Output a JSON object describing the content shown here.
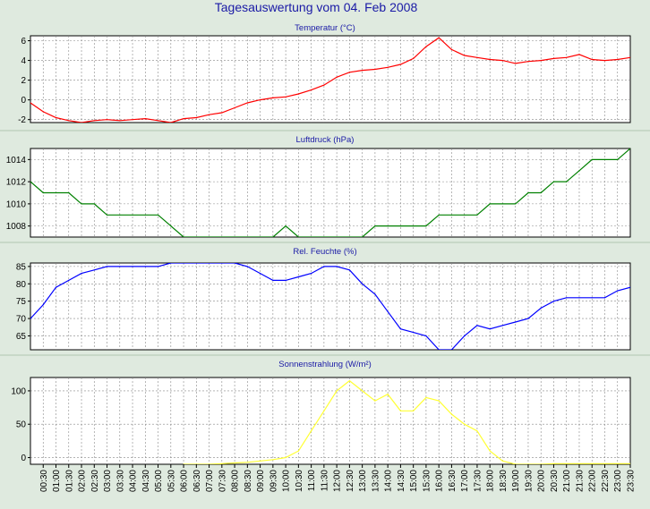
{
  "page_title": "Tagesauswertung vom 04. Feb 2008",
  "x_tick_labels": [
    "00:30",
    "01:00",
    "01:30",
    "02:00",
    "02:30",
    "03:00",
    "03:30",
    "04:00",
    "04:30",
    "05:00",
    "05:30",
    "06:00",
    "06:30",
    "07:00",
    "07:30",
    "08:00",
    "08:30",
    "09:00",
    "09:30",
    "10:00",
    "10:30",
    "11:00",
    "11:30",
    "12:00",
    "12:30",
    "13:00",
    "13:30",
    "14:00",
    "14:30",
    "15:00",
    "15:30",
    "16:00",
    "16:30",
    "17:00",
    "17:30",
    "18:00",
    "18:30",
    "19:00",
    "19:30",
    "20:00",
    "20:30",
    "21:00",
    "21:30",
    "22:00",
    "22:30",
    "23:00",
    "23:30"
  ],
  "colors": {
    "background": "#dfeadf",
    "plot_bg": "#ffffff",
    "grid": "#888888",
    "title": "#1a1aa6"
  },
  "chart_data": [
    {
      "type": "line",
      "title": "Temperatur (°C)",
      "color": "#ff0000",
      "ylim": [
        -2.3,
        6.5
      ],
      "yticks": [
        -2,
        0,
        2,
        4,
        6
      ],
      "x": [
        0,
        0.5,
        1,
        1.5,
        2,
        2.5,
        3,
        3.5,
        4,
        4.5,
        5,
        5.5,
        6,
        6.5,
        7,
        7.5,
        8,
        8.5,
        9,
        9.5,
        10,
        10.5,
        11,
        11.5,
        12,
        12.5,
        13,
        13.5,
        14,
        14.5,
        15,
        15.5,
        16,
        16.5,
        17,
        17.5,
        18,
        18.5,
        19,
        19.5,
        20,
        20.5,
        21,
        21.5,
        22,
        22.5,
        23,
        23.5
      ],
      "values": [
        -0.3,
        -1.2,
        -1.8,
        -2.1,
        -2.3,
        -2.1,
        -2.0,
        -2.1,
        -2.0,
        -1.9,
        -2.1,
        -2.3,
        -1.9,
        -1.8,
        -1.5,
        -1.3,
        -0.8,
        -0.3,
        0,
        0.2,
        0.3,
        0.6,
        1.0,
        1.5,
        2.3,
        2.8,
        3.0,
        3.1,
        3.3,
        3.6,
        4.2,
        5.4,
        6.3,
        5.1,
        4.5,
        4.3,
        4.1,
        4.0,
        3.7,
        3.9,
        4.0,
        4.2,
        4.3,
        4.6,
        4.1,
        4.0,
        4.1,
        4.3
      ]
    },
    {
      "type": "line",
      "title": "Luftdruck (hPa)",
      "color": "#008000",
      "ylim": [
        1007,
        1015
      ],
      "yticks": [
        1008,
        1010,
        1012,
        1014
      ],
      "x": [
        0,
        0.5,
        1,
        1.5,
        2,
        2.5,
        3,
        3.5,
        4,
        4.5,
        5,
        5.5,
        6,
        6.5,
        7,
        7.5,
        8,
        8.5,
        9,
        9.5,
        10,
        10.5,
        11,
        11.5,
        12,
        12.5,
        13,
        13.5,
        14,
        14.5,
        15,
        15.5,
        16,
        16.5,
        17,
        17.5,
        18,
        18.5,
        19,
        19.5,
        20,
        20.5,
        21,
        21.5,
        22,
        22.5,
        23,
        23.5
      ],
      "values": [
        1012,
        1011,
        1011,
        1011,
        1010,
        1010,
        1009,
        1009,
        1009,
        1009,
        1009,
        1008,
        1007,
        1007,
        1007,
        1007,
        1007,
        1007,
        1007,
        1007,
        1008,
        1007,
        1007,
        1007,
        1007,
        1007,
        1007,
        1008,
        1008,
        1008,
        1008,
        1008,
        1009,
        1009,
        1009,
        1009,
        1010,
        1010,
        1010,
        1011,
        1011,
        1012,
        1012,
        1013,
        1014,
        1014,
        1014,
        1015
      ]
    },
    {
      "type": "line",
      "title": "Rel. Feuchte (%)",
      "color": "#0000ff",
      "ylim": [
        61,
        86
      ],
      "yticks": [
        65,
        70,
        75,
        80,
        85
      ],
      "x": [
        0,
        0.5,
        1,
        1.5,
        2,
        2.5,
        3,
        3.5,
        4,
        4.5,
        5,
        5.5,
        6,
        6.5,
        7,
        7.5,
        8,
        8.5,
        9,
        9.5,
        10,
        10.5,
        11,
        11.5,
        12,
        12.5,
        13,
        13.5,
        14,
        14.5,
        15,
        15.5,
        16,
        16.5,
        17,
        17.5,
        18,
        18.5,
        19,
        19.5,
        20,
        20.5,
        21,
        21.5,
        22,
        22.5,
        23,
        23.5
      ],
      "values": [
        70,
        74,
        79,
        81,
        83,
        84,
        85,
        85,
        85,
        85,
        85,
        86,
        86,
        86,
        86,
        86,
        86,
        85,
        83,
        81,
        81,
        82,
        83,
        85,
        85,
        84,
        80,
        77,
        72,
        67,
        66,
        65,
        61,
        61,
        65,
        68,
        67,
        68,
        69,
        70,
        73,
        75,
        76,
        76,
        76,
        76,
        78,
        79
      ]
    },
    {
      "type": "line",
      "title": "Sonnenstrahlung (W/m²)",
      "color": "#ffff33",
      "ylim": [
        -10,
        120
      ],
      "yticks": [
        0,
        50,
        100
      ],
      "x": [
        6,
        6.5,
        7,
        7.5,
        8,
        8.5,
        9,
        9.5,
        10,
        10.5,
        11,
        11.5,
        12,
        12.5,
        13,
        13.5,
        14,
        14.5,
        15,
        15.5,
        16,
        16.5,
        17,
        17.5,
        18,
        18.5,
        19,
        19.5,
        20,
        20.5,
        21,
        21.5,
        22,
        22.5,
        23,
        23.5
      ],
      "values": [
        -10,
        -10,
        -10,
        -9,
        -8,
        -7,
        -5,
        -3,
        0,
        10,
        40,
        70,
        100,
        115,
        100,
        85,
        95,
        70,
        70,
        90,
        85,
        65,
        50,
        40,
        10,
        -5,
        -10,
        -10,
        -10,
        -9,
        -9,
        -9,
        -9,
        -9,
        -9,
        -9
      ]
    }
  ]
}
